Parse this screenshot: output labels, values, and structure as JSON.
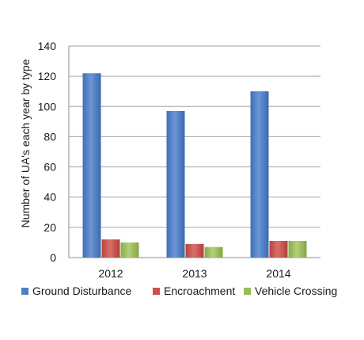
{
  "chart_data": {
    "type": "bar",
    "title": "",
    "xlabel": "",
    "ylabel": "Number of UA's each year by type",
    "categories": [
      "2012",
      "2013",
      "2014"
    ],
    "series": [
      {
        "name": "Ground Disturbance",
        "color": "#4f7fc4",
        "values": [
          122,
          97,
          110
        ]
      },
      {
        "name": "Encroachment",
        "color": "#c9504c",
        "values": [
          12,
          9,
          11
        ]
      },
      {
        "name": "Vehicle Crossing",
        "color": "#9bbb59",
        "values": [
          10,
          7,
          11
        ]
      }
    ],
    "ylim": [
      0,
      140
    ],
    "yticks": [
      0,
      20,
      40,
      60,
      80,
      100,
      120,
      140
    ],
    "grid": true,
    "legend": "bottom"
  }
}
